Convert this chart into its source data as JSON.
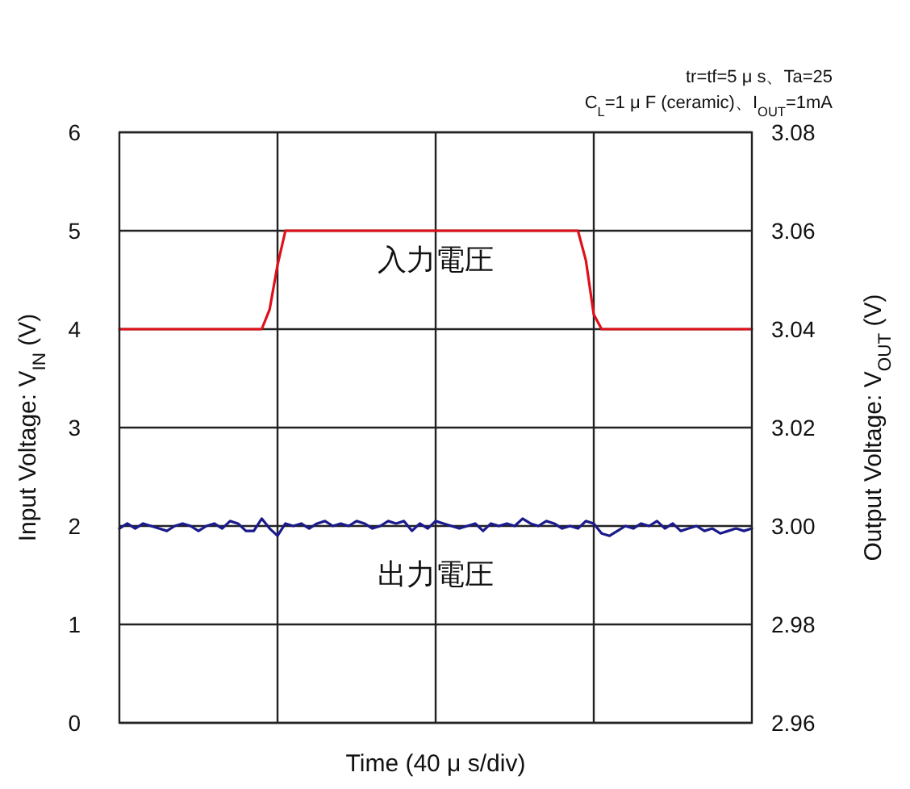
{
  "chart_data": {
    "type": "line",
    "subtitle": "tr=tf=5 μ s、Ta=25\nC$_{L}$=1 μ F (ceramic)、I$_{OUT}$=1mA",
    "xlabel": "Time (40 μ s/div)",
    "ylabel": "Input Voltage: V$_{IN}$ (V)",
    "y2label": "Output Voltage: V$_{OUT}$ (V)",
    "categories": [
      null,
      null,
      null,
      null,
      null,
      null,
      null,
      null,
      null,
      null,
      null,
      null,
      null,
      null,
      null,
      null,
      null,
      null,
      null,
      null,
      null,
      null,
      null,
      null,
      null,
      null,
      null,
      null,
      null,
      null,
      null,
      null,
      null,
      null,
      null,
      null,
      null,
      null,
      null,
      null,
      null,
      null,
      null,
      null,
      null,
      null,
      null,
      null,
      null,
      null,
      null,
      null,
      null,
      null,
      null,
      null,
      null,
      null,
      null,
      null,
      null,
      null,
      null,
      null,
      null,
      null,
      null,
      null,
      null,
      null,
      null,
      null,
      null,
      null,
      null,
      null,
      null,
      null,
      null,
      null,
      null
    ],
    "ylim": [
      0,
      6
    ],
    "yticks": [
      0,
      1,
      2,
      3,
      4,
      5,
      6
    ],
    "y2lim": [
      2.96,
      3.08
    ],
    "y2ticks": [
      2.96,
      2.98,
      {
        "value": 3,
        "label": "3.00"
      },
      3.02,
      3.04,
      3.06,
      3.08
    ],
    "grid": true,
    "series": [
      {
        "name": "入力電圧",
        "color": "#e0101a",
        "values": [
          4,
          4,
          4,
          4,
          4,
          4,
          4,
          4,
          4,
          4,
          4,
          4,
          4,
          4,
          4,
          4,
          4,
          4,
          4,
          4.2,
          4.65,
          5,
          5,
          5,
          5,
          5,
          5,
          5,
          5,
          5,
          5,
          5,
          5,
          5,
          5,
          5,
          5,
          5,
          5,
          5,
          5,
          5,
          5,
          5,
          5,
          5,
          5,
          5,
          5,
          5,
          5,
          5,
          5,
          5,
          5,
          5,
          5,
          5,
          5,
          4.7,
          4.15,
          4,
          4,
          4,
          4,
          4,
          4,
          4,
          4,
          4,
          4,
          4,
          4,
          4,
          4,
          4,
          4,
          4,
          4,
          4,
          4
        ]
      },
      {
        "name": "出力電圧",
        "color": "#1a1a8c",
        "axis": "y2",
        "values": [
          2.9995,
          3.0005,
          2.9995,
          3.0005,
          3.0,
          2.9995,
          2.999,
          3.0,
          3.0005,
          3.0,
          2.999,
          3.0,
          3.0005,
          2.9995,
          3.001,
          3.0005,
          2.999,
          2.999,
          3.0015,
          2.9995,
          2.998,
          3.0005,
          3.0,
          3.0005,
          2.9995,
          3.0005,
          3.001,
          3.0,
          3.0005,
          3.0,
          3.001,
          3.0005,
          2.9995,
          3.0,
          3.001,
          3.0005,
          3.001,
          2.999,
          3.0005,
          2.9995,
          3.001,
          3.0005,
          3.0,
          2.9995,
          3.0,
          3.0005,
          2.999,
          3.0005,
          3.0,
          3.0005,
          3.0,
          3.0015,
          3.0005,
          3.0,
          3.001,
          3.0005,
          2.9995,
          3.0,
          2.9995,
          3.001,
          3.0005,
          2.9985,
          2.998,
          2.999,
          3.0,
          2.9995,
          3.0005,
          3.0,
          3.001,
          2.9995,
          3.0005,
          2.999,
          2.9995,
          3.0,
          2.999,
          2.9995,
          2.9985,
          2.999,
          2.9995,
          2.999,
          2.9995
        ]
      }
    ]
  }
}
